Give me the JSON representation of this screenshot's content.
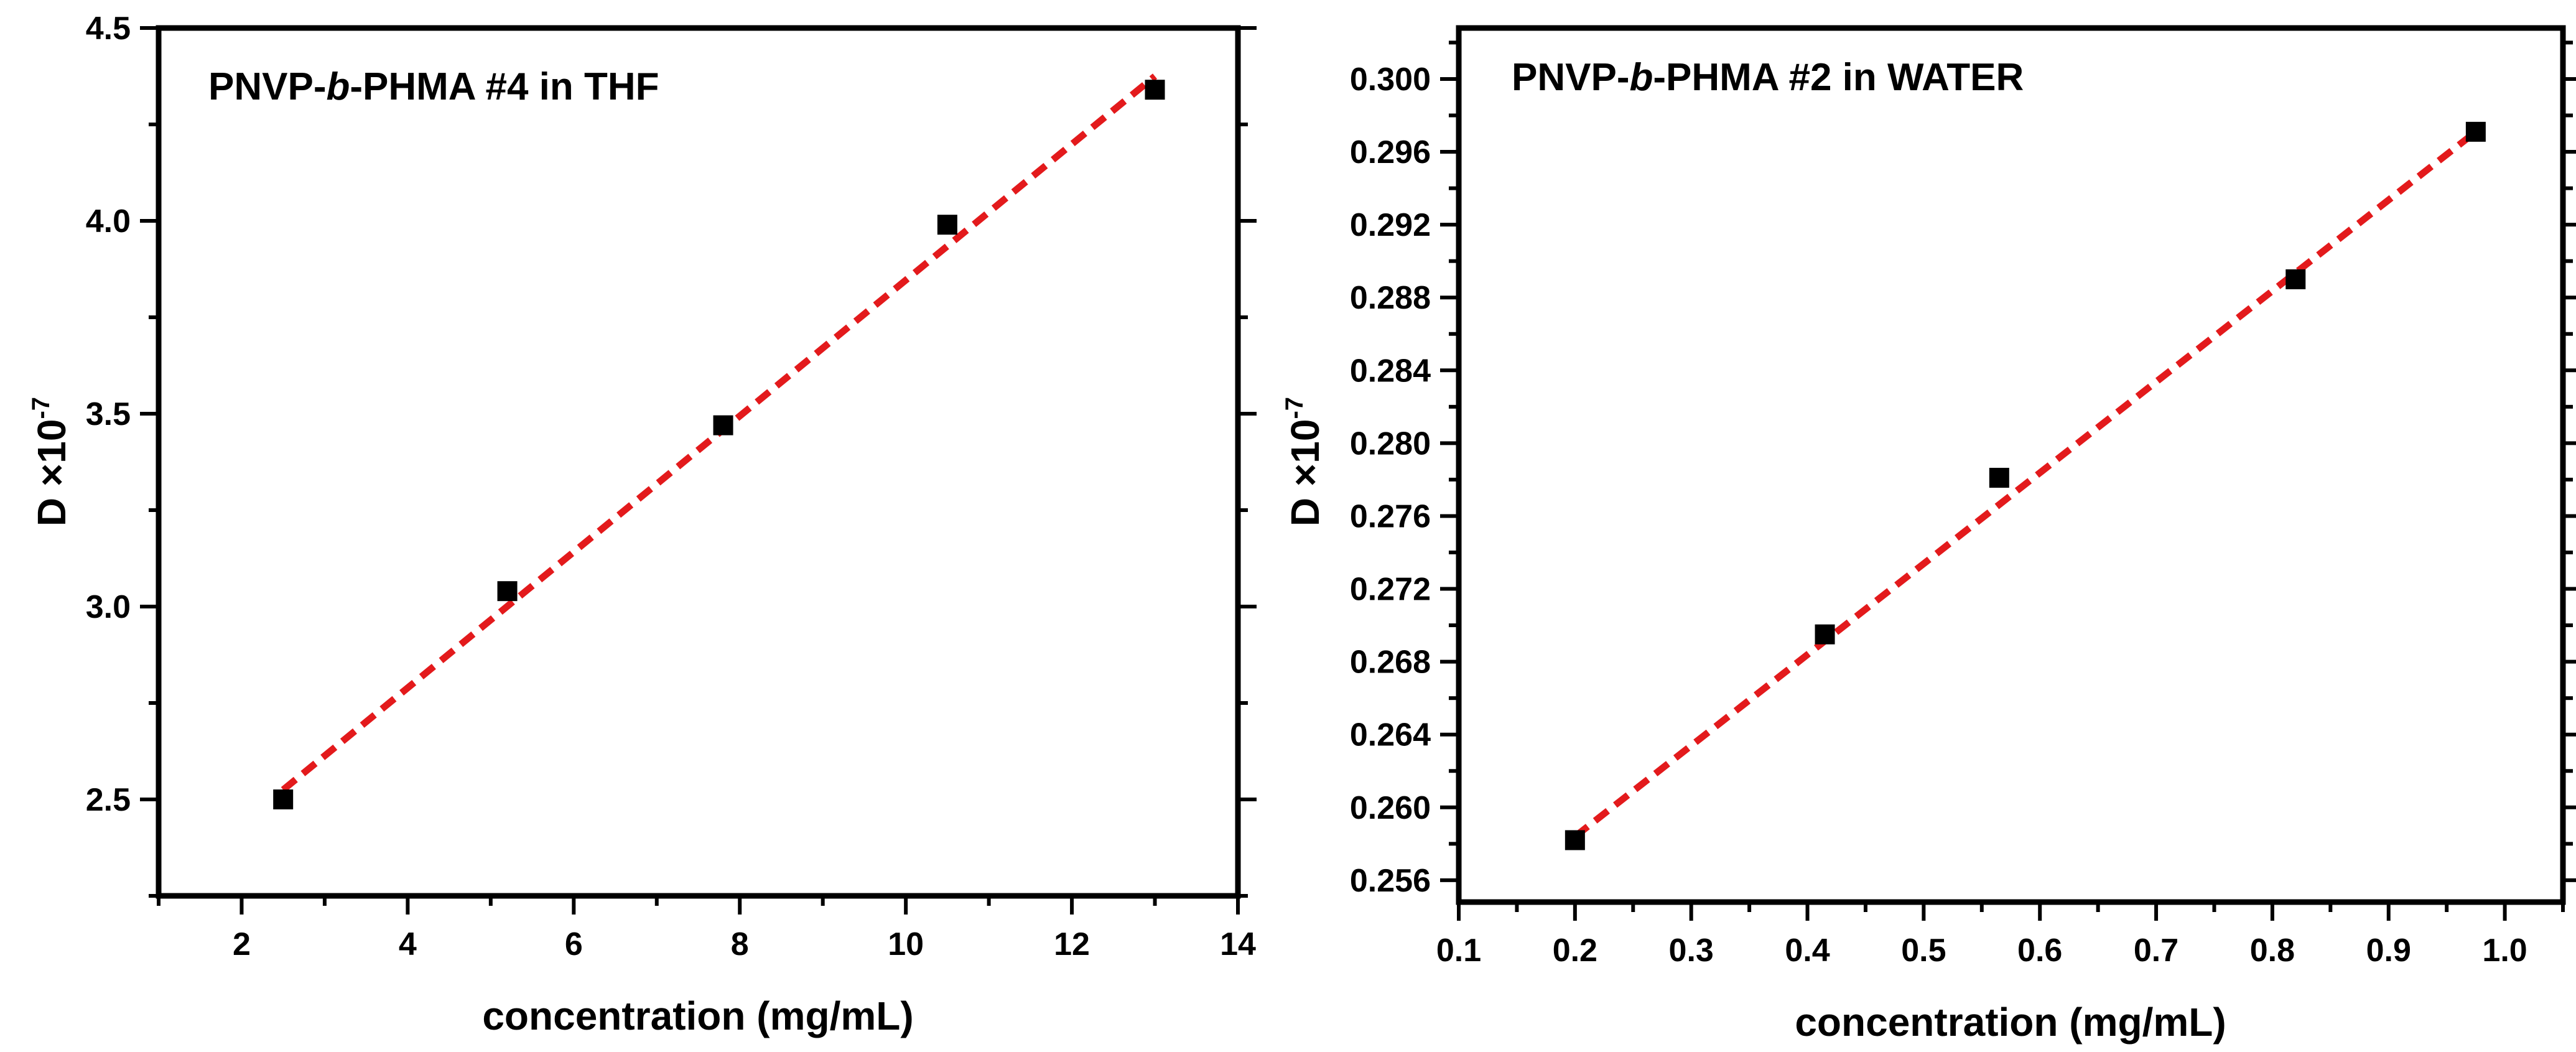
{
  "colors": {
    "fit_line": "#e31a1c",
    "marker": "#000000",
    "axes": "#000000"
  },
  "chart_data": [
    {
      "type": "scatter",
      "title": {
        "prefix": "PNVP-",
        "italic": "b",
        "suffix": "-PHMA #4 in THF"
      },
      "xlabel": "concentration (mg/mL)",
      "ylabel": {
        "base": "D ×10",
        "sup": "-7"
      },
      "xlim": [
        1,
        14
      ],
      "ylim": [
        2.25,
        4.5
      ],
      "xticks": [
        2,
        4,
        6,
        8,
        10,
        12,
        14
      ],
      "xtick_labels": [
        "2",
        "4",
        "6",
        "8",
        "10",
        "12",
        "14"
      ],
      "yticks": [
        2.5,
        3.0,
        3.5,
        4.0,
        4.5
      ],
      "ytick_labels": [
        "2.5",
        "3.0",
        "3.5",
        "4.0",
        "4.5"
      ],
      "x_minor_step": 1,
      "y_minor_step": 0.25,
      "series": [
        {
          "name": "data",
          "x": [
            2.5,
            5.2,
            7.8,
            10.5,
            13.0
          ],
          "y": [
            2.5,
            3.04,
            3.47,
            3.99,
            4.34
          ]
        }
      ],
      "fit": {
        "x": [
          2.5,
          13.0
        ],
        "y": [
          2.525,
          4.375
        ]
      }
    },
    {
      "type": "scatter",
      "title": {
        "prefix": "PNVP-",
        "italic": "b",
        "suffix": "-PHMA #2 in WATER"
      },
      "xlabel": "concentration (mg/mL)",
      "ylabel": {
        "base": "D ×10",
        "sup": "-7"
      },
      "xlim": [
        0.1,
        1.05
      ],
      "ylim": [
        0.2548,
        0.3028
      ],
      "xticks": [
        0.1,
        0.2,
        0.3,
        0.4,
        0.5,
        0.6,
        0.7,
        0.8,
        0.9,
        1.0
      ],
      "xtick_labels": [
        "0.1",
        "0.2",
        "0.3",
        "0.4",
        "0.5",
        "0.6",
        "0.7",
        "0.8",
        "0.9",
        "1.0"
      ],
      "yticks": [
        0.256,
        0.26,
        0.264,
        0.268,
        0.272,
        0.276,
        0.28,
        0.284,
        0.288,
        0.292,
        0.296,
        0.3
      ],
      "ytick_labels": [
        "0.256",
        "0.260",
        "0.264",
        "0.268",
        "0.272",
        "0.276",
        "0.280",
        "0.284",
        "0.288",
        "0.292",
        "0.296",
        "0.300"
      ],
      "x_minor_step": 0.05,
      "y_minor_step": 0.002,
      "series": [
        {
          "name": "data",
          "x": [
            0.2,
            0.415,
            0.565,
            0.82,
            0.975
          ],
          "y": [
            0.2582,
            0.2695,
            0.2781,
            0.289,
            0.2971
          ]
        }
      ],
      "fit": {
        "x": [
          0.2,
          0.975
        ],
        "y": [
          0.2584,
          0.2971
        ]
      }
    }
  ]
}
